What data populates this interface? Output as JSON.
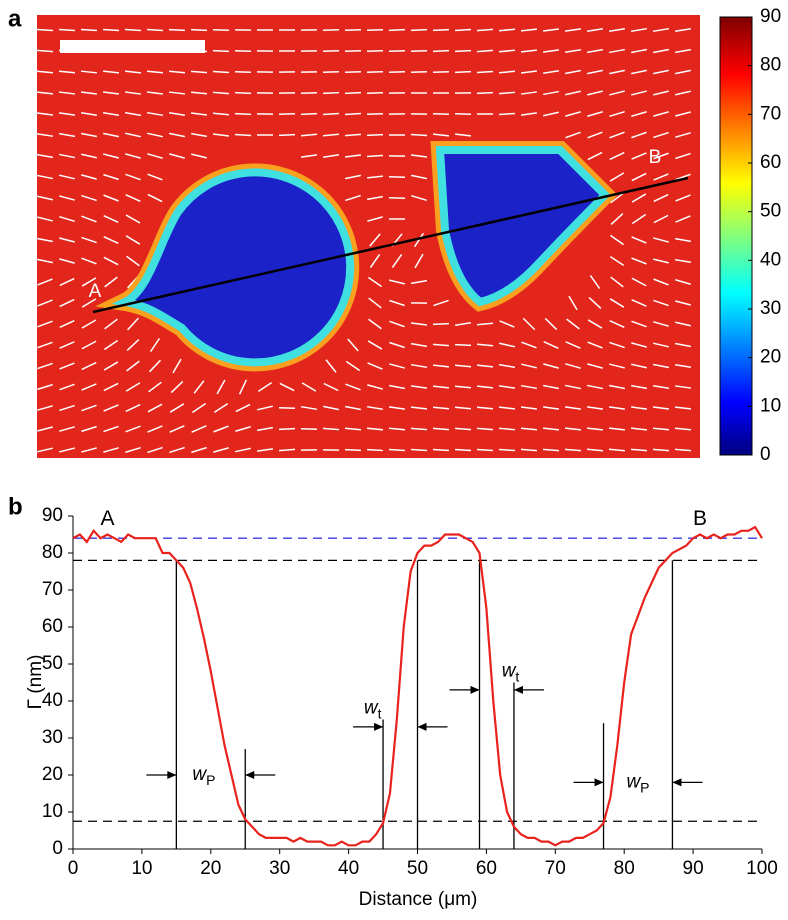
{
  "chart_data": [
    {
      "type": "heatmap",
      "panel_label": "a",
      "annotations": [
        {
          "text": "A"
        },
        {
          "text": "B"
        }
      ],
      "clim": [
        0,
        90
      ],
      "cticks": [
        0,
        10,
        20,
        30,
        40,
        50,
        60,
        70,
        80,
        90
      ]
    },
    {
      "type": "line",
      "panel_label": "b",
      "xlabel": "Distance (μm)",
      "ylabel": "Γ (nm)",
      "x": [
        0,
        1,
        2,
        3,
        4,
        5,
        6,
        7,
        8,
        9,
        10,
        11,
        12,
        13,
        14,
        15,
        16,
        17,
        18,
        19,
        20,
        21,
        22,
        23,
        24,
        25,
        26,
        27,
        28,
        29,
        30,
        31,
        32,
        33,
        34,
        35,
        36,
        37,
        38,
        39,
        40,
        41,
        42,
        43,
        44,
        45,
        46,
        47,
        48,
        49,
        50,
        51,
        52,
        53,
        54,
        55,
        56,
        57,
        58,
        59,
        60,
        61,
        62,
        63,
        64,
        65,
        66,
        67,
        68,
        69,
        70,
        71,
        72,
        73,
        74,
        75,
        76,
        77,
        78,
        79,
        80,
        81,
        82,
        83,
        84,
        85,
        86,
        87,
        88,
        89,
        90,
        91,
        92,
        93,
        94,
        95,
        96,
        97,
        98,
        99,
        100
      ],
      "series": [
        {
          "color": "#e8221c",
          "values": [
            84,
            85,
            83,
            86,
            84,
            85,
            84,
            83,
            85,
            84,
            84,
            84,
            84,
            80,
            80,
            78,
            76,
            72,
            65,
            57,
            48,
            38,
            28,
            20,
            12,
            8,
            6,
            4,
            3,
            3,
            3,
            3,
            2,
            3,
            2,
            2,
            2,
            1,
            1,
            2,
            1,
            1,
            2,
            2,
            4,
            7,
            15,
            35,
            60,
            75,
            80,
            82,
            82,
            83,
            85,
            85,
            85,
            84,
            83,
            80,
            65,
            40,
            20,
            10,
            6,
            4,
            3,
            3,
            2,
            2,
            1,
            2,
            2,
            3,
            3,
            4,
            5,
            7,
            14,
            28,
            45,
            58,
            63,
            68,
            72,
            76,
            78,
            80,
            81,
            82,
            84,
            85,
            84,
            85,
            84,
            85,
            85,
            86,
            86,
            87,
            84
          ]
        }
      ],
      "xlim": [
        0,
        100
      ],
      "ylim": [
        0,
        90
      ],
      "xticks": [
        0,
        10,
        20,
        30,
        40,
        50,
        60,
        70,
        80,
        90,
        100
      ],
      "yticks": [
        0,
        10,
        20,
        30,
        40,
        50,
        60,
        70,
        80,
        90
      ],
      "hlines": [
        {
          "value": 84,
          "color": "#3a3ae0"
        },
        {
          "value": 78,
          "color": "#000000"
        },
        {
          "value": 7.5,
          "color": "#000000"
        }
      ],
      "vlines": [
        {
          "x": 15,
          "top": 78
        },
        {
          "x": 25,
          "top": 27
        },
        {
          "x": 45,
          "top": 35
        },
        {
          "x": 50,
          "top": 78
        },
        {
          "x": 59,
          "top": 78
        },
        {
          "x": 64,
          "top": 45
        },
        {
          "x": 77,
          "top": 34
        },
        {
          "x": 87,
          "top": 78
        }
      ],
      "point_labels": [
        {
          "text": "A",
          "x": 5,
          "y": 89
        },
        {
          "text": "B",
          "x": 91,
          "y": 89
        }
      ],
      "annotations": [
        {
          "text": "w",
          "sub": "P",
          "x": 19,
          "y": 20,
          "arrows": [
            15,
            25
          ],
          "arrow_y": 20
        },
        {
          "text": "w",
          "sub": "t",
          "x": 43.5,
          "y": 38,
          "arrows": [
            45,
            50
          ],
          "arrow_y": 33
        },
        {
          "text": "w",
          "sub": "t",
          "x": 63.5,
          "y": 48,
          "arrows": [
            59,
            64
          ],
          "arrow_y": 43
        },
        {
          "text": "w",
          "sub": "P",
          "x": 82,
          "y": 18,
          "arrows": [
            77,
            87
          ],
          "arrow_y": 18
        }
      ]
    }
  ]
}
